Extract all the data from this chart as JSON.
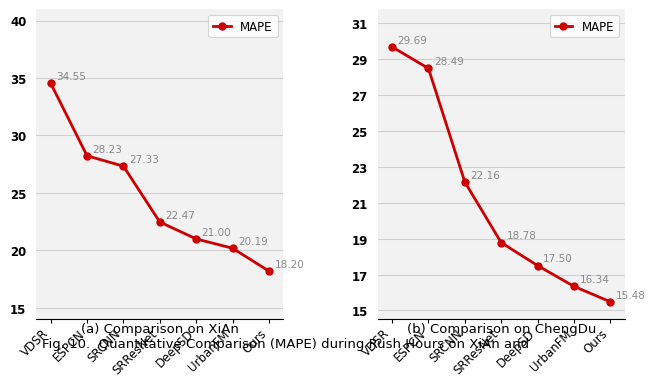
{
  "categories": [
    "VDSR",
    "ESPCN",
    "SRCNN",
    "SRResNet",
    "DeepSD",
    "UrbanFM",
    "Ours"
  ],
  "xian_values": [
    34.55,
    28.23,
    27.33,
    22.47,
    21.0,
    20.19,
    18.2
  ],
  "chengdu_values": [
    29.69,
    28.49,
    22.16,
    18.78,
    17.5,
    16.34,
    15.48
  ],
  "xian_annotations": [
    "34.55",
    "28.23",
    "27.33",
    "22.47",
    "21.00",
    "20.19",
    "18.20"
  ],
  "chengdu_annotations": [
    "29.69",
    "28.49",
    "22.16",
    "18.78",
    "17.50",
    "16.34",
    "15.48"
  ],
  "xian_yticks": [
    15,
    20,
    25,
    30,
    35,
    40
  ],
  "chengdu_yticks": [
    15,
    17,
    19,
    21,
    23,
    25,
    27,
    29,
    31
  ],
  "xian_ylim": [
    14,
    41
  ],
  "chengdu_ylim": [
    14.5,
    31.8
  ],
  "line_color": "#CC0000",
  "marker": "o",
  "marker_size": 5,
  "line_width": 2,
  "label": "MAPE",
  "subtitle_a": "(a) Comparison on XiAn",
  "subtitle_b": "(b) Comparison on ChengDu",
  "caption": "Fig. 10.  Quantitative Comparison (MAPE) during Rush Hours on XiAn and",
  "annotation_color": "#888888",
  "annotation_fontsize": 7.5,
  "tick_label_fontsize": 8.5,
  "subtitle_fontsize": 9.5,
  "caption_fontsize": 9.5,
  "legend_fontsize": 8.5,
  "background_color": "#f2f2f2",
  "grid_color": "#d0d0d0"
}
